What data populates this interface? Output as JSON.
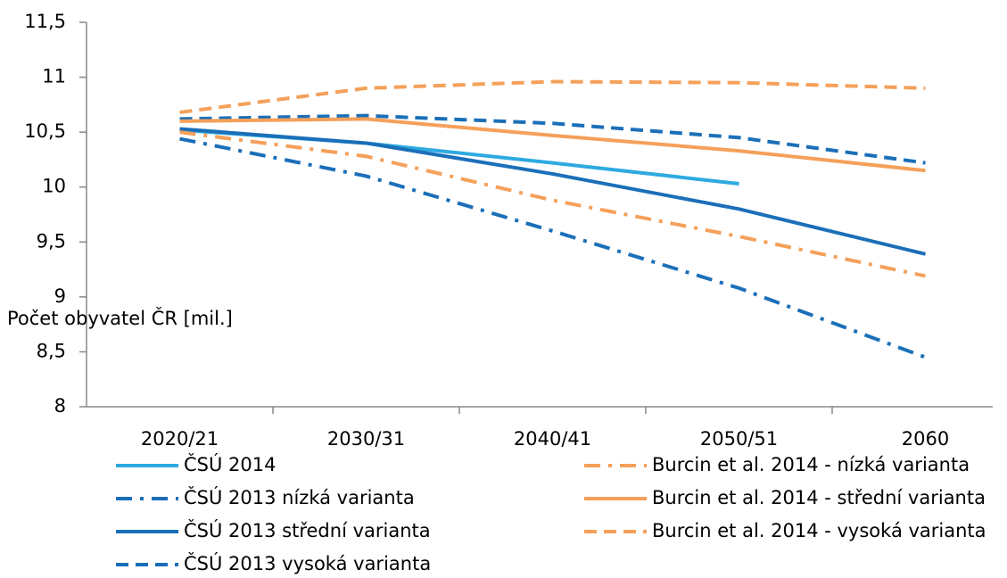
{
  "chart_data": {
    "type": "line",
    "y_label": "Počet obyvatel ČR [mil.]",
    "categories": [
      "2020/21",
      "2030/31",
      "2040/41",
      "2050/51",
      "2060"
    ],
    "ylim": [
      8,
      11.5
    ],
    "yticks": [
      8,
      {
        "value": 8.5,
        "label": "8,5"
      },
      9,
      {
        "value": 9.5,
        "label": "9,5"
      },
      10,
      {
        "value": 10.5,
        "label": "10,5"
      },
      11,
      {
        "value": 11.5,
        "label": "11,5"
      }
    ],
    "grid": false,
    "series": [
      {
        "name": "ČSÚ 2014",
        "color": "#2eaae1",
        "dash": "solid",
        "values": [
          10.52,
          10.4,
          10.22,
          10.03,
          null
        ]
      },
      {
        "name": "ČSÚ 2013 nízká varianta",
        "color": "#1b6fb8",
        "dash": "dashdot",
        "values": [
          10.44,
          10.1,
          9.6,
          9.08,
          8.45
        ]
      },
      {
        "name": "ČSÚ 2013 střední varianta",
        "color": "#1b6fb8",
        "dash": "solid",
        "values": [
          10.53,
          10.4,
          10.12,
          9.8,
          9.39
        ]
      },
      {
        "name": "ČSÚ 2013 vysoká varianta",
        "color": "#1b6fb8",
        "dash": "dash",
        "values": [
          10.62,
          10.65,
          10.58,
          10.45,
          10.22
        ]
      },
      {
        "name": "Burcin et al. 2014 - nízká varianta",
        "color": "#f5a05a",
        "dash": "dashdot",
        "values": [
          10.5,
          10.28,
          9.88,
          9.55,
          9.19
        ]
      },
      {
        "name": "Burcin et al. 2014 - střední varianta",
        "color": "#f5a05a",
        "dash": "solid",
        "values": [
          10.6,
          10.62,
          10.47,
          10.33,
          10.15
        ]
      },
      {
        "name": "Burcin et al. 2014 - vysoká varianta",
        "color": "#f5a05a",
        "dash": "dash",
        "values": [
          10.68,
          10.9,
          10.96,
          10.95,
          10.9
        ]
      }
    ]
  }
}
